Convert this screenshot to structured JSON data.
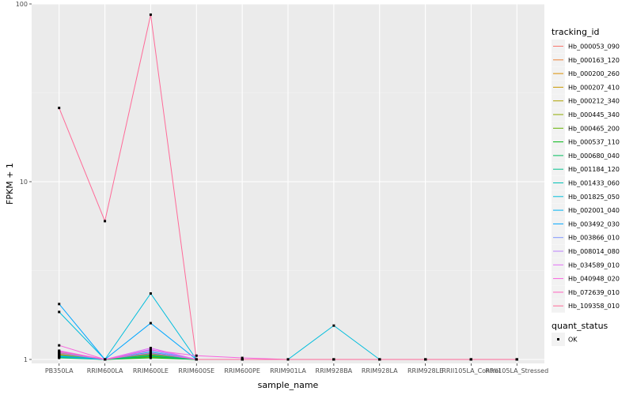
{
  "chart_data": {
    "type": "line",
    "xlabel": "sample_name",
    "ylabel": "FPKM + 1",
    "y_scale": "log10",
    "ylim": [
      0.95,
      100
    ],
    "y_ticks": [
      {
        "value": 1,
        "label": "1"
      },
      {
        "value": 10,
        "label": "10"
      },
      {
        "value": 100,
        "label": "100"
      }
    ],
    "grid": true,
    "background": "#ebebeb",
    "legend_position": "right",
    "legend_title": "tracking_id",
    "categories": [
      "PB350LA",
      "RRIM600LA",
      "RRIM600LE",
      "RRIM600SE",
      "RRIM600PE",
      "RRIM901LA",
      "RRIM928BA",
      "RRIM928LA",
      "RRIM928LE",
      "RRII105LA_Control",
      "RRII105LA_Stressed"
    ],
    "series": [
      {
        "name": "Hb_000053_090",
        "color": "#F8766D",
        "values": [
          1.1,
          1.0,
          1.07,
          1.0,
          1.0,
          1.0,
          1.0,
          1.0,
          1.0,
          1.0,
          1.0
        ]
      },
      {
        "name": "Hb_000163_120",
        "color": "#EC8239",
        "values": [
          1.09,
          1.0,
          1.05,
          1.0,
          1.0,
          1.0,
          1.0,
          1.0,
          1.0,
          1.0,
          1.0
        ]
      },
      {
        "name": "Hb_000200_260",
        "color": "#DB8E00",
        "values": [
          1.08,
          1.0,
          1.06,
          1.0,
          1.0,
          1.0,
          1.0,
          1.0,
          1.0,
          1.0,
          1.0
        ]
      },
      {
        "name": "Hb_000207_410",
        "color": "#C79800",
        "values": [
          1.07,
          1.0,
          1.04,
          1.0,
          1.0,
          1.0,
          1.0,
          1.0,
          1.0,
          1.0,
          1.0
        ]
      },
      {
        "name": "Hb_000212_340",
        "color": "#AEA200",
        "values": [
          1.06,
          1.0,
          1.05,
          1.0,
          1.0,
          1.0,
          1.0,
          1.0,
          1.0,
          1.0,
          1.0
        ]
      },
      {
        "name": "Hb_000445_340",
        "color": "#8FAA00",
        "values": [
          1.05,
          1.0,
          1.03,
          1.0,
          1.0,
          1.0,
          1.0,
          1.0,
          1.0,
          1.0,
          1.0
        ]
      },
      {
        "name": "Hb_000465_200",
        "color": "#64B200",
        "values": [
          1.04,
          1.0,
          1.06,
          1.0,
          1.0,
          1.0,
          1.0,
          1.0,
          1.0,
          1.0,
          1.0
        ]
      },
      {
        "name": "Hb_000537_110",
        "color": "#00B813",
        "values": [
          1.03,
          1.0,
          1.02,
          1.0,
          1.0,
          1.0,
          1.0,
          1.0,
          1.0,
          1.0,
          1.0
        ]
      },
      {
        "name": "Hb_000680_040",
        "color": "#00BD5C",
        "values": [
          1.02,
          1.0,
          1.04,
          1.0,
          1.0,
          1.0,
          1.0,
          1.0,
          1.0,
          1.0,
          1.0
        ]
      },
      {
        "name": "Hb_001184_120",
        "color": "#00C08E",
        "values": [
          1.03,
          1.0,
          1.05,
          1.0,
          1.0,
          1.0,
          1.0,
          1.0,
          1.0,
          1.0,
          1.0
        ]
      },
      {
        "name": "Hb_001433_060",
        "color": "#00C1B7",
        "values": [
          1.05,
          1.0,
          1.08,
          1.0,
          1.0,
          1.0,
          1.0,
          1.0,
          1.0,
          1.0,
          1.0
        ]
      },
      {
        "name": "Hb_001825_050",
        "color": "#00BDDC",
        "values": [
          1.85,
          1.0,
          2.35,
          1.0,
          1.0,
          1.0,
          1.55,
          1.0,
          1.0,
          1.0,
          1.0
        ]
      },
      {
        "name": "Hb_002001_040",
        "color": "#00B2F3",
        "values": [
          1.04,
          1.0,
          1.1,
          1.0,
          1.0,
          1.0,
          1.0,
          1.0,
          1.0,
          1.0,
          1.0
        ]
      },
      {
        "name": "Hb_003492_030",
        "color": "#00A6FF",
        "values": [
          2.05,
          1.0,
          1.6,
          1.0,
          1.0,
          1.0,
          1.0,
          1.0,
          1.0,
          1.0,
          1.0
        ]
      },
      {
        "name": "Hb_003866_010",
        "color": "#7F96FF",
        "values": [
          1.08,
          1.0,
          1.12,
          1.0,
          1.0,
          1.0,
          1.0,
          1.0,
          1.0,
          1.0,
          1.0
        ]
      },
      {
        "name": "Hb_008014_080",
        "color": "#BC81FF",
        "values": [
          1.1,
          1.0,
          1.14,
          1.0,
          1.0,
          1.0,
          1.0,
          1.0,
          1.0,
          1.0,
          1.0
        ]
      },
      {
        "name": "Hb_034589_010",
        "color": "#E26EF7",
        "values": [
          1.12,
          1.0,
          1.16,
          1.0,
          1.0,
          1.0,
          1.0,
          1.0,
          1.0,
          1.0,
          1.0
        ]
      },
      {
        "name": "Hb_040948_020",
        "color": "#F863DF",
        "values": [
          1.2,
          1.0,
          1.13,
          1.05,
          1.02,
          1.0,
          1.0,
          1.0,
          1.0,
          1.0,
          1.0
        ]
      },
      {
        "name": "Hb_072639_010",
        "color": "#FF62BF",
        "values": [
          1.11,
          1.0,
          1.09,
          1.0,
          1.0,
          1.0,
          1.0,
          1.0,
          1.0,
          1.0,
          1.0
        ]
      },
      {
        "name": "Hb_109358_010",
        "color": "#FF6A98",
        "values": [
          26.0,
          6.0,
          87.0,
          1.0,
          1.0,
          1.0,
          1.0,
          1.0,
          1.0,
          1.0,
          1.0
        ]
      }
    ],
    "point_legend_title": "quant_status",
    "point_legend_entries": [
      "OK"
    ]
  }
}
